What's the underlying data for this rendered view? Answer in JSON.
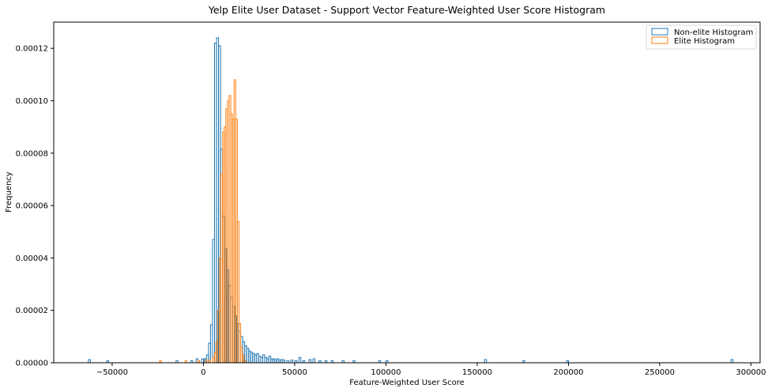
{
  "chart_data": {
    "type": "histogram",
    "title": "Yelp Elite User Dataset - Support Vector Feature-Weighted User Score Histogram",
    "xlabel": "Feature-Weighted User Score",
    "ylabel": "Frequency",
    "xlim": [
      -82000,
      305000
    ],
    "ylim": [
      0,
      0.00013
    ],
    "xticks": [
      -50000,
      0,
      50000,
      100000,
      150000,
      200000,
      250000,
      300000
    ],
    "xtick_labels": [
      "−50000",
      "0",
      "50000",
      "100000",
      "150000",
      "200000",
      "250000",
      "300000"
    ],
    "yticks": [
      0,
      2e-05,
      4e-05,
      6e-05,
      8e-05,
      0.0001,
      0.00012
    ],
    "ytick_labels": [
      "0.00000",
      "0.00002",
      "0.00004",
      "0.00006",
      "0.00008",
      "0.00010",
      "0.00012"
    ],
    "legend_position": "top-right",
    "grid": false,
    "series": [
      {
        "name": "Non-elite Histogram",
        "color": "#1f77b4",
        "bin_width": 1100,
        "bins": [
          [
            -63000,
            1.2e-06
          ],
          [
            -53000,
            8e-07
          ],
          [
            -15000,
            8e-07
          ],
          [
            -7000,
            8e-07
          ],
          [
            -4000,
            1.5e-06
          ],
          [
            -1000,
            1.5e-06
          ],
          [
            500,
            1.5e-06
          ],
          [
            1700,
            3e-06
          ],
          [
            2800,
            7.5e-06
          ],
          [
            3900,
            1.45e-05
          ],
          [
            5000,
            4.7e-05
          ],
          [
            6100,
            0.000122
          ],
          [
            7200,
            0.000124
          ],
          [
            8300,
            0.000121
          ],
          [
            9400,
            8.15e-05
          ],
          [
            10500,
            5.6e-05
          ],
          [
            11600,
            4.35e-05
          ],
          [
            12700,
            3.55e-05
          ],
          [
            13800,
            2.95e-05
          ],
          [
            14900,
            2.5e-05
          ],
          [
            16000,
            2.15e-05
          ],
          [
            17100,
            1.8e-05
          ],
          [
            18200,
            1.5e-05
          ],
          [
            19300,
            1.2e-05
          ],
          [
            20400,
            1e-05
          ],
          [
            21500,
            8e-06
          ],
          [
            22600,
            6.5e-06
          ],
          [
            23700,
            5.5e-06
          ],
          [
            24800,
            4.5e-06
          ],
          [
            25900,
            4e-06
          ],
          [
            27000,
            3.5e-06
          ],
          [
            28100,
            3e-06
          ],
          [
            29200,
            3.5e-06
          ],
          [
            30300,
            2.5e-06
          ],
          [
            31400,
            2e-06
          ],
          [
            32500,
            3e-06
          ],
          [
            33600,
            2e-06
          ],
          [
            34700,
            1.5e-06
          ],
          [
            35800,
            2.5e-06
          ],
          [
            36900,
            1.5e-06
          ],
          [
            38000,
            1.5e-06
          ],
          [
            39100,
            1.2e-06
          ],
          [
            40200,
            1.5e-06
          ],
          [
            41300,
            1e-06
          ],
          [
            42400,
            1.2e-06
          ],
          [
            43500,
            1e-06
          ],
          [
            45700,
            8e-07
          ],
          [
            47900,
            1e-06
          ],
          [
            50100,
            8e-07
          ],
          [
            52300,
            2e-06
          ],
          [
            54500,
            8e-07
          ],
          [
            57800,
            1.2e-06
          ],
          [
            60000,
            1.5e-06
          ],
          [
            63300,
            8e-07
          ],
          [
            66600,
            8e-07
          ],
          [
            70000,
            8e-07
          ],
          [
            76000,
            8e-07
          ],
          [
            82000,
            8e-07
          ],
          [
            96000,
            8e-07
          ],
          [
            100000,
            8e-07
          ],
          [
            154000,
            1.2e-06
          ],
          [
            175000,
            8e-07
          ],
          [
            199000,
            8e-07
          ],
          [
            289000,
            1.2e-06
          ]
        ]
      },
      {
        "name": "Elite Histogram",
        "color": "#ff7f0e",
        "bin_width": 900,
        "bins": [
          [
            -24000,
            8e-07
          ],
          [
            -10000,
            8e-07
          ],
          [
            -3000,
            8e-07
          ],
          [
            1000,
            1e-06
          ],
          [
            3000,
            1e-06
          ],
          [
            5000,
            2e-06
          ],
          [
            6000,
            4e-06
          ],
          [
            6900,
            8e-06
          ],
          [
            7800,
            2e-05
          ],
          [
            8700,
            4e-05
          ],
          [
            9600,
            7.2e-05
          ],
          [
            10500,
            8.8e-05
          ],
          [
            11400,
            9e-05
          ],
          [
            12300,
            9.7e-05
          ],
          [
            13200,
            0.0001
          ],
          [
            14100,
            0.000102
          ],
          [
            15000,
            9.5e-05
          ],
          [
            15900,
            9.3e-05
          ],
          [
            16800,
            0.000108
          ],
          [
            17700,
            9.3e-05
          ],
          [
            18600,
            5.4e-05
          ],
          [
            19500,
            1.5e-05
          ],
          [
            20400,
            6e-06
          ],
          [
            21300,
            3e-06
          ],
          [
            22200,
            1e-06
          ]
        ]
      }
    ]
  }
}
